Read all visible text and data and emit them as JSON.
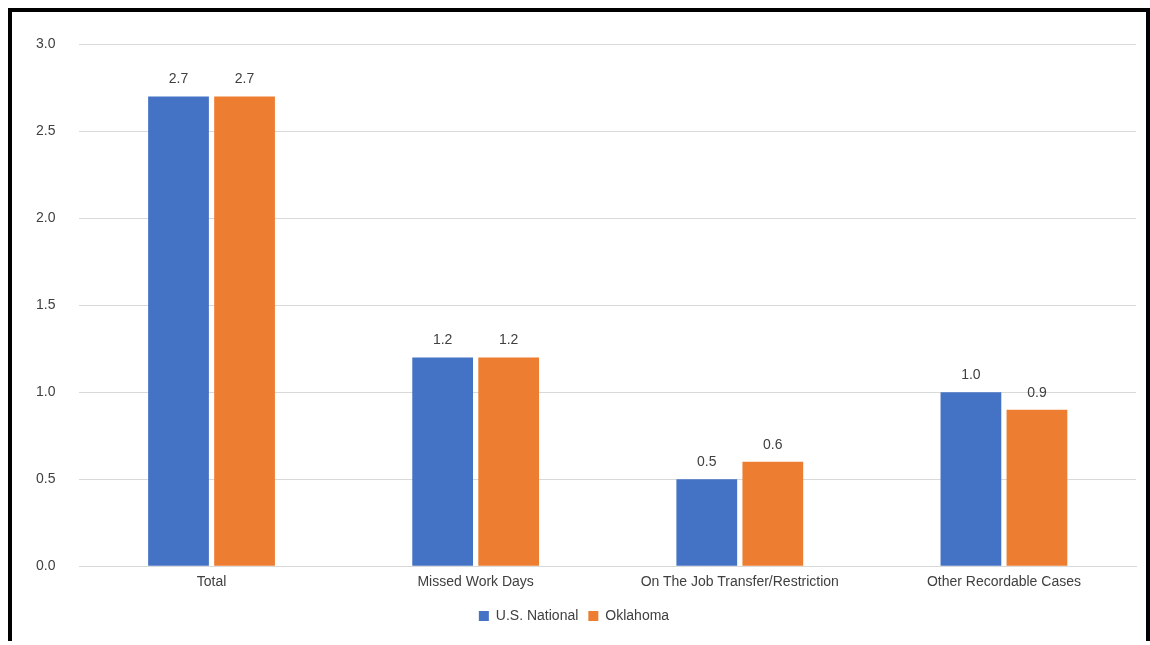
{
  "chart_data": {
    "type": "bar",
    "categories": [
      "Total",
      "Missed Work Days",
      "On The Job Transfer/Restriction",
      "Other Recordable Cases"
    ],
    "series": [
      {
        "name": "U.S. National",
        "color": "#4472c4",
        "values": [
          2.7,
          1.2,
          0.5,
          1.0
        ]
      },
      {
        "name": "Oklahoma",
        "color": "#ed7d31",
        "values": [
          2.7,
          1.2,
          0.6,
          0.9
        ]
      }
    ],
    "ylim": [
      0,
      3
    ],
    "yticks": [
      {
        "value": 0,
        "label": "0.0"
      },
      {
        "value": 0.5,
        "label": "0.5"
      },
      {
        "value": 1,
        "label": "1.0"
      },
      {
        "value": 1.5,
        "label": "1.5"
      },
      {
        "value": 2,
        "label": "2.0"
      },
      {
        "value": 2.5,
        "label": "2.5"
      },
      {
        "value": 3,
        "label": "3.0"
      }
    ],
    "grid": "y",
    "legend": "bottom",
    "value_labels": [
      [
        "2.7",
        "1.2",
        "0.5",
        "1.0"
      ],
      [
        "2.7",
        "1.2",
        "0.6",
        "0.9"
      ]
    ]
  }
}
